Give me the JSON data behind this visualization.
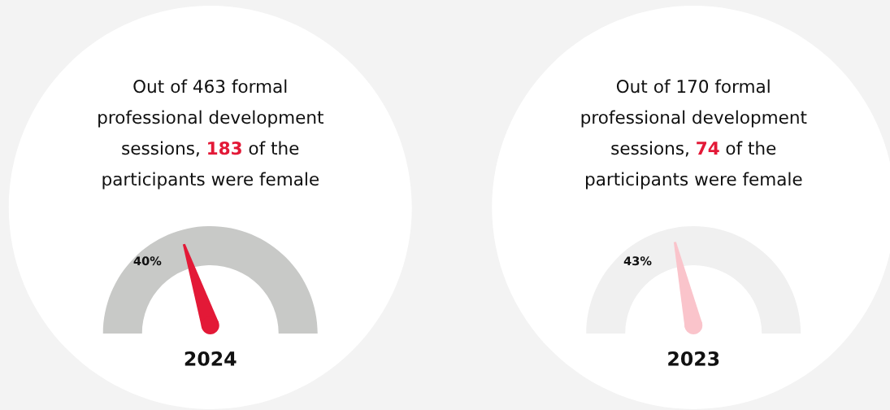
{
  "chart_data": [
    {
      "type": "other",
      "annotations": [
        "Out of 463 formal professional development sessions, ",
        "183",
        " of the participants were female"
      ],
      "values": [
        40
      ],
      "value_labels": [
        "40%"
      ],
      "colors": [
        "#c8c9c7"
      ],
      "xlabel": "2024"
    },
    {
      "type": "other",
      "annotations": [
        "Out of 170 formal professional development sessions, ",
        "74",
        " of the participants were female"
      ],
      "values": [
        43
      ],
      "value_labels": [
        "43%"
      ],
      "colors": [
        "#f0f0f0"
      ],
      "xlabel": "2023"
    }
  ]
}
